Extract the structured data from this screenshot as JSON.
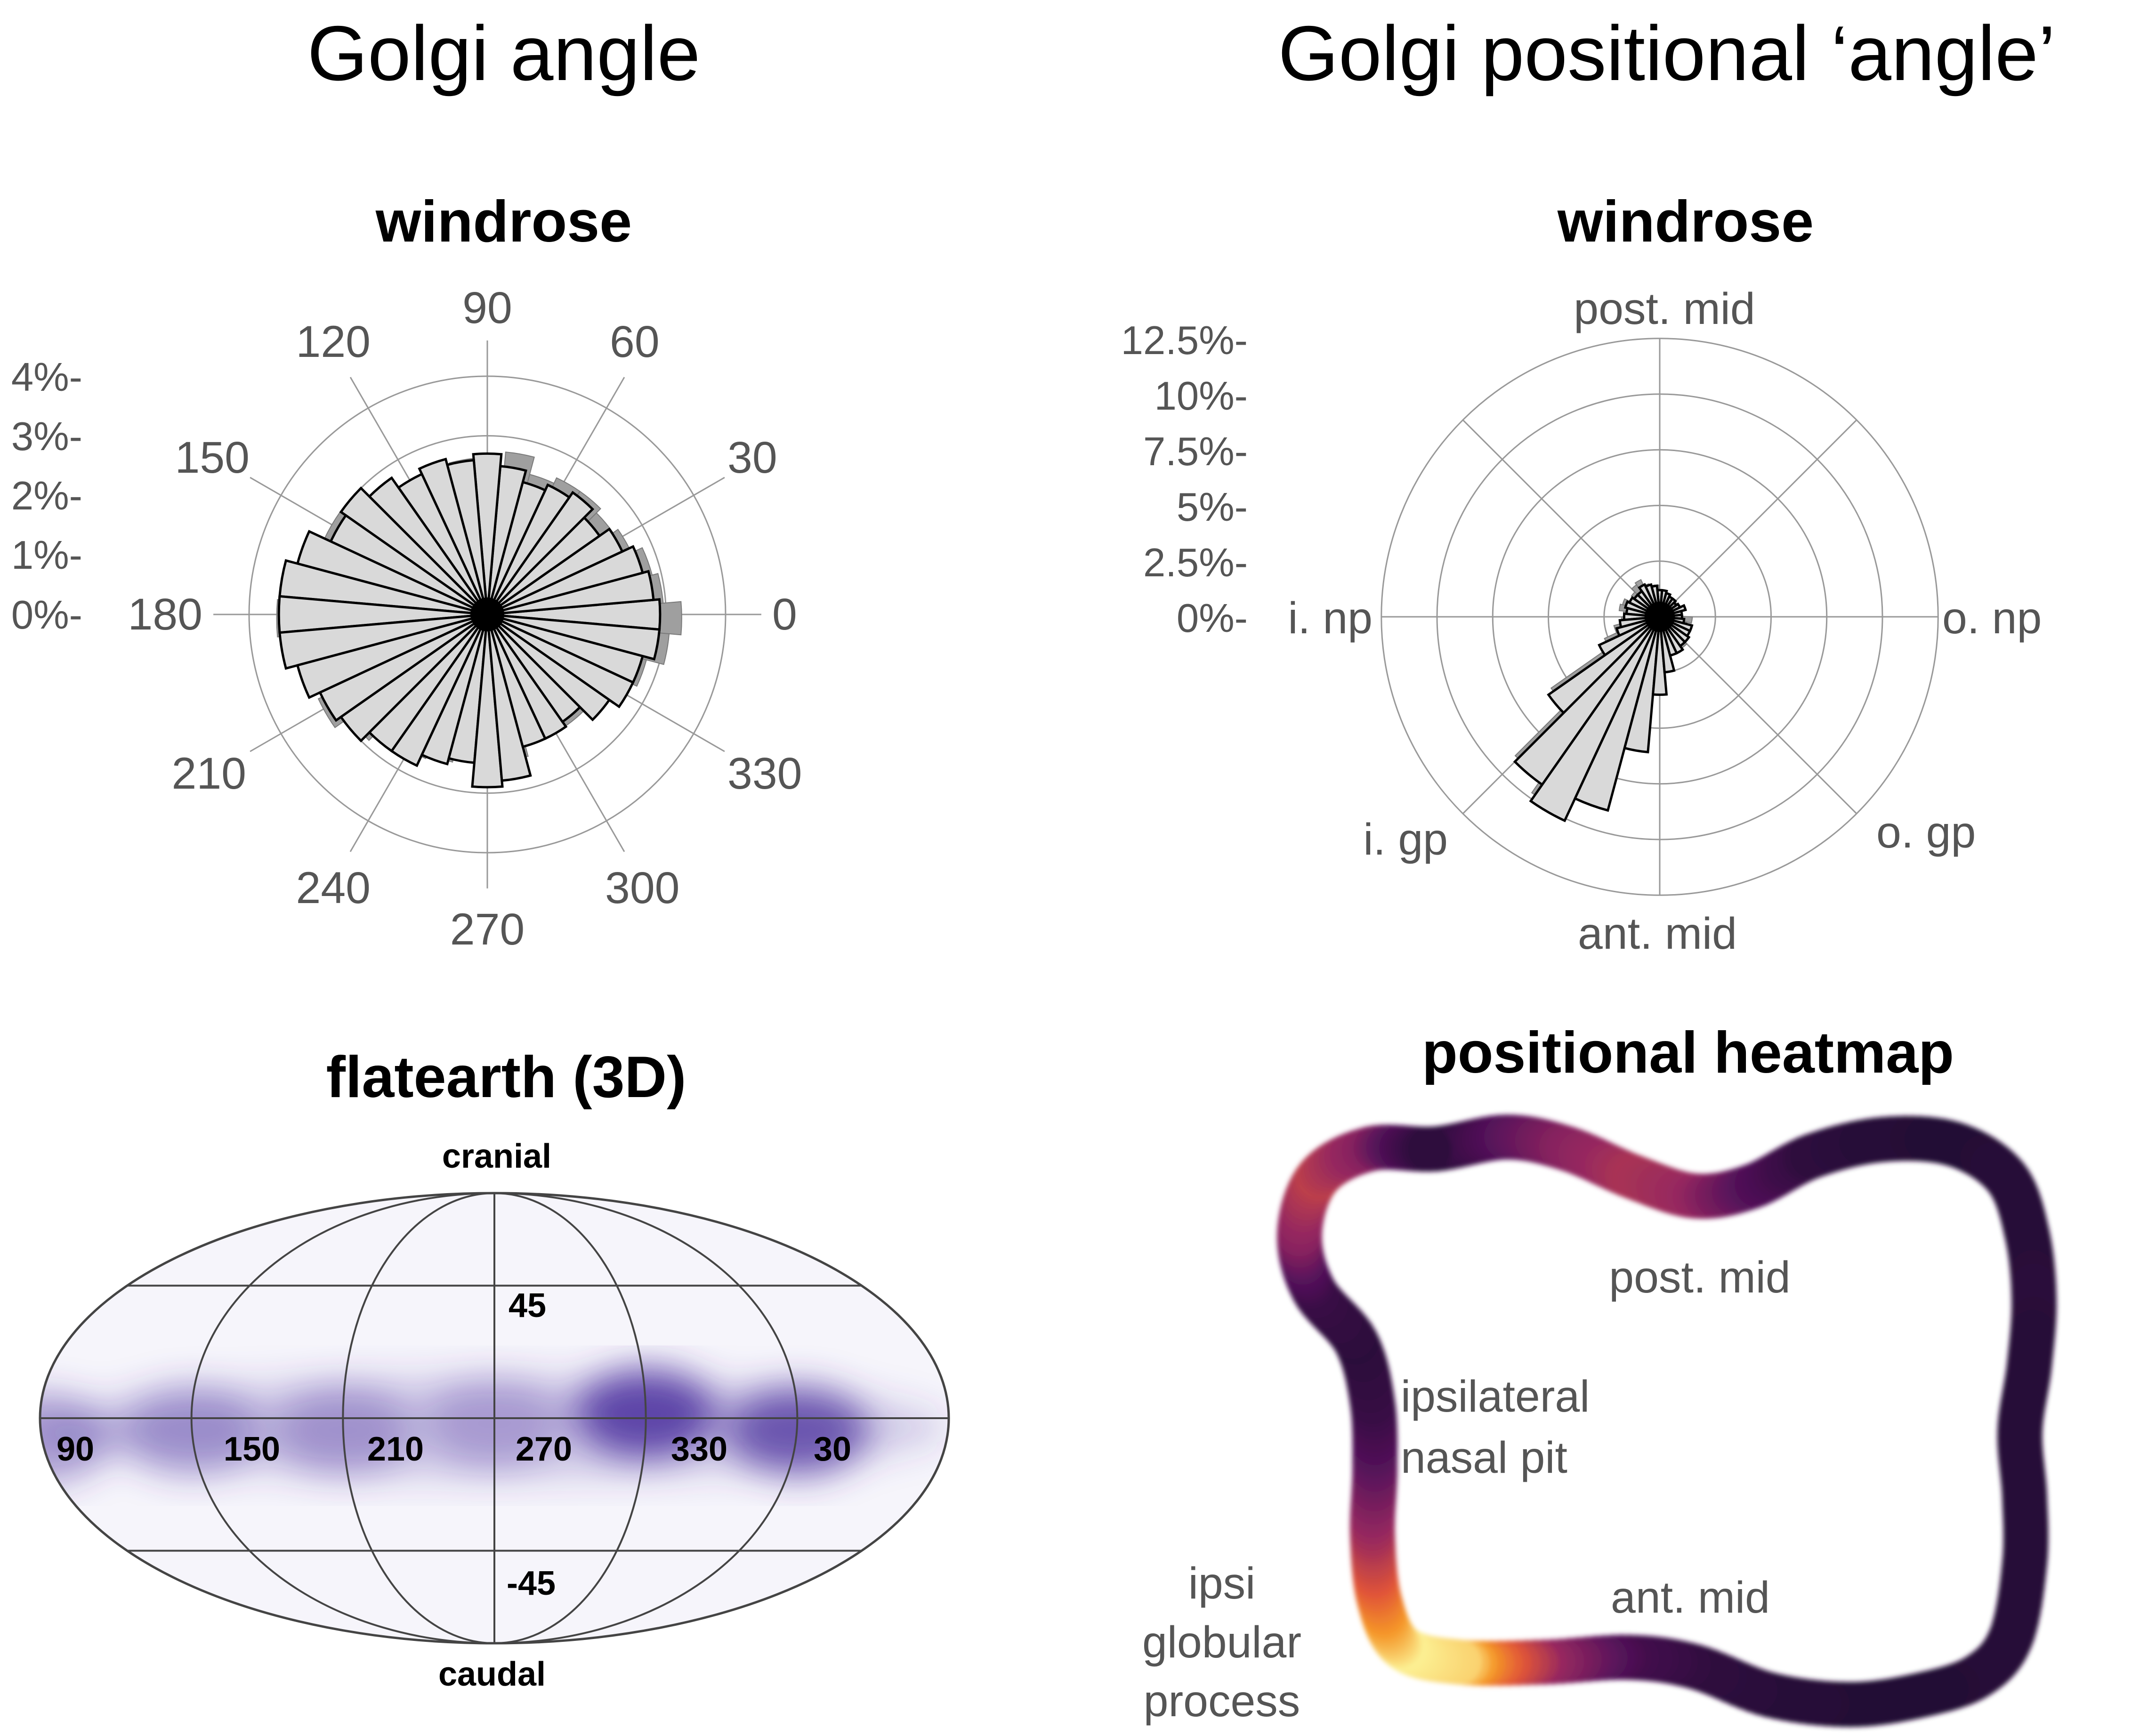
{
  "titles": {
    "left": "Golgi angle",
    "right": "Golgi positional ‘angle’"
  },
  "colors": {
    "bar_fill": "#d9d9d9",
    "bar_shadow": "#9f9f9f",
    "grid": "#999999",
    "map_density": "#4a2f9e",
    "heatmap_low": "#1c0a30",
    "heatmap_mid": "#7e2c6b",
    "heatmap_high": "#fcf093"
  },
  "chart_data": [
    {
      "type": "windrose",
      "title": "windrose",
      "angle_labels": [
        "0",
        "30",
        "60",
        "90",
        "120",
        "150",
        "180",
        "210",
        "240",
        "270",
        "300",
        "330"
      ],
      "r_tick_labels": [
        "0%-",
        "1%-",
        "2%-",
        "3%-",
        "4%-"
      ],
      "r_ticks": [
        0,
        1,
        2,
        3,
        4
      ],
      "rlim": [
        0,
        4.6
      ],
      "grid": true,
      "direction": "counterclockwise from 0 at right",
      "bin_width_deg": 10,
      "bin_centers_deg": [
        0,
        10,
        20,
        30,
        40,
        50,
        60,
        70,
        80,
        90,
        100,
        110,
        120,
        130,
        140,
        150,
        160,
        170,
        180,
        190,
        200,
        210,
        220,
        230,
        240,
        250,
        260,
        270,
        280,
        290,
        300,
        310,
        320,
        330,
        340,
        350
      ],
      "series": [
        {
          "values": [
            2.9,
            2.8,
            2.7,
            2.5,
            2.3,
            2.5,
            2.4,
            2.3,
            2.5,
            2.7,
            2.6,
            2.7,
            2.6,
            2.8,
            3.0,
            2.9,
            3.3,
            3.5,
            3.5,
            3.5,
            3.3,
            3.1,
            3.0,
            2.8,
            2.8,
            2.6,
            2.5,
            2.9,
            2.8,
            2.3,
            2.3,
            2.2,
            2.5,
            2.7,
            2.7,
            2.9
          ]
        },
        {
          "values": [
            3.2,
            2.9,
            2.8,
            2.6,
            2.5,
            2.6,
            2.6,
            2.5,
            2.8,
            2.5,
            2.7,
            2.5,
            2.4,
            2.7,
            2.9,
            3.1,
            3.2,
            3.5,
            3.6,
            3.3,
            3.1,
            3.2,
            2.9,
            2.7,
            2.6,
            2.5,
            2.4,
            2.5,
            2.4,
            2.1,
            2.1,
            2.2,
            2.3,
            2.5,
            2.7,
            3.0
          ]
        }
      ]
    },
    {
      "type": "windrose",
      "title": "windrose",
      "angle_labels": [
        "o. np",
        "post. mid",
        "i. np",
        "i. gp",
        "ant. mid",
        "o. gp"
      ],
      "r_tick_labels": [
        "0%-",
        "2.5%-",
        "5%-",
        "7.5%-",
        "10%-",
        "12.5%-"
      ],
      "r_ticks": [
        0,
        2.5,
        5,
        7.5,
        10,
        12.5
      ],
      "rlim": [
        0,
        12.5
      ],
      "grid": true,
      "bin_width_deg": 10,
      "bin_centers_deg": [
        0,
        10,
        20,
        30,
        40,
        50,
        60,
        70,
        80,
        90,
        100,
        110,
        120,
        130,
        140,
        150,
        160,
        170,
        180,
        190,
        200,
        210,
        220,
        230,
        240,
        250,
        260,
        270,
        280,
        290,
        300,
        310,
        320,
        330,
        340,
        350
      ],
      "series": [
        {
          "values": [
            1.0,
            1.0,
            1.2,
            1.0,
            0.9,
            1.0,
            1.0,
            1.1,
            1.2,
            1.2,
            1.4,
            1.5,
            1.6,
            1.4,
            1.4,
            1.5,
            1.6,
            1.5,
            1.6,
            1.8,
            2.0,
            3.0,
            6.1,
            9.2,
            10.1,
            9.0,
            6.1,
            3.5,
            2.5,
            1.8,
            1.8,
            1.6,
            1.6,
            1.5,
            1.5,
            1.1
          ]
        },
        {
          "values": [
            1.1,
            1.1,
            1.0,
            1.0,
            1.0,
            1.0,
            1.0,
            1.0,
            1.0,
            1.3,
            1.3,
            1.4,
            1.7,
            1.6,
            1.4,
            1.3,
            1.6,
            1.7,
            1.5,
            1.6,
            2.0,
            2.6,
            5.8,
            9.0,
            9.8,
            8.2,
            5.5,
            3.2,
            2.3,
            1.7,
            1.8,
            1.9,
            1.5,
            1.5,
            1.4,
            1.6
          ]
        }
      ]
    },
    {
      "type": "heatmap",
      "title": "flatearth (3D)",
      "projection": "Mollweide",
      "top_label": "cranial",
      "bottom_label": "caudal",
      "lon_labels": [
        "90",
        "150",
        "210",
        "270",
        "330",
        "30"
      ],
      "lat_labels": [
        "45",
        "-45"
      ],
      "density_peaks": [
        {
          "lon": 90,
          "lat": -8,
          "level": 0.45
        },
        {
          "lon": 150,
          "lat": -5,
          "level": 0.4
        },
        {
          "lon": 210,
          "lat": -5,
          "level": 0.35
        },
        {
          "lon": 270,
          "lat": -2,
          "level": 0.3
        },
        {
          "lon": 330,
          "lat": 2,
          "level": 0.85
        },
        {
          "lon": 30,
          "lat": -5,
          "level": 0.75
        }
      ]
    },
    {
      "type": "heatmap",
      "title": "positional heatmap",
      "region_labels": [
        "post. mid",
        "ipsilateral",
        "nasal pit",
        "ant. mid",
        "ipsi",
        "globular",
        "process"
      ],
      "hotspots": [
        {
          "region": "ipsi globular process",
          "level": 1.0
        },
        {
          "region": "post. mid (left)",
          "level": 0.65
        },
        {
          "region": "ipsilateral nasal pit",
          "level": 0.1
        }
      ]
    }
  ]
}
